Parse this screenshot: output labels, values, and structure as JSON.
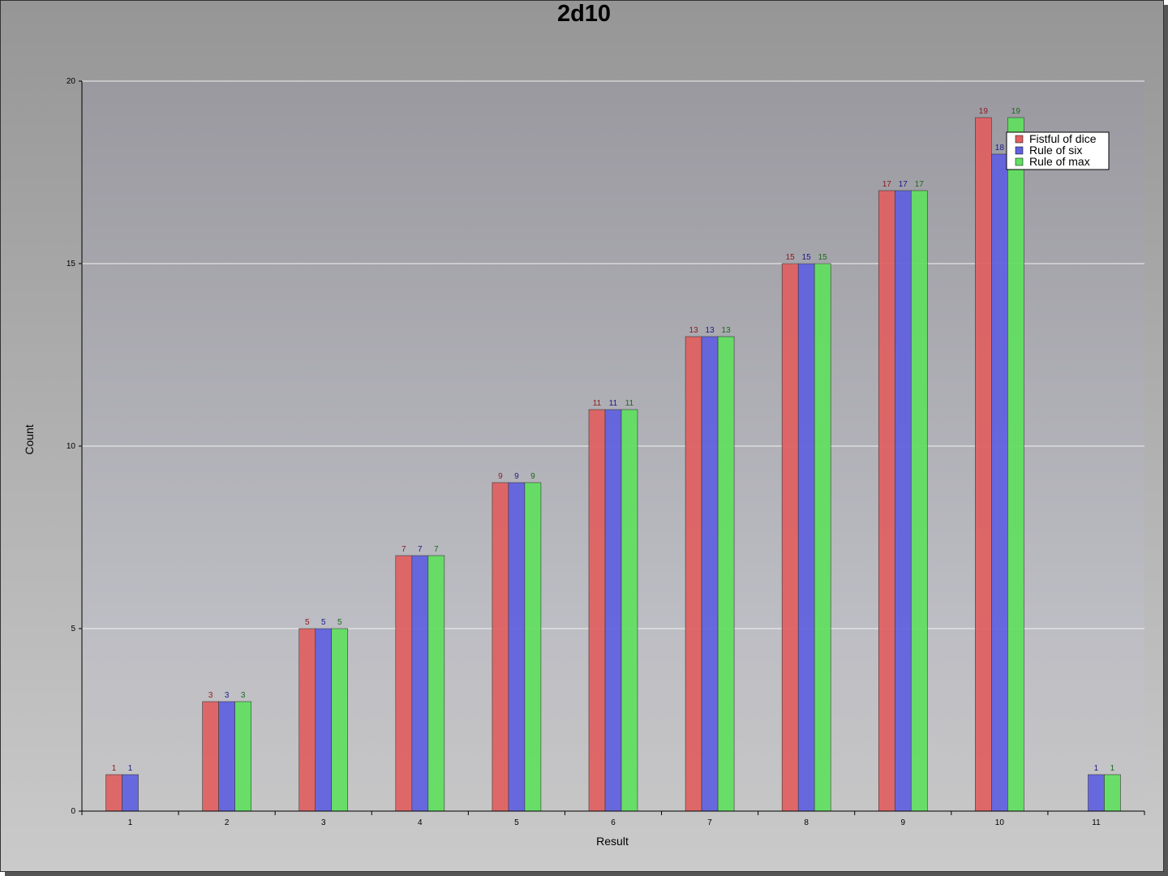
{
  "chart_data": {
    "type": "bar",
    "title": "2d10",
    "xlabel": "Result",
    "ylabel": "Count",
    "categories": [
      "1",
      "2",
      "3",
      "4",
      "5",
      "6",
      "7",
      "8",
      "9",
      "10",
      "11"
    ],
    "ylim": [
      0,
      20
    ],
    "yticks": [
      0,
      5,
      10,
      15,
      20
    ],
    "grid": true,
    "legend_position": "top-right",
    "series": [
      {
        "name": "Fistful of dice",
        "color": "#e06060",
        "label_color": "#8b1a1a",
        "values": [
          1,
          3,
          5,
          7,
          9,
          11,
          13,
          15,
          17,
          19,
          null
        ]
      },
      {
        "name": "Rule of six",
        "color": "#6060e0",
        "label_color": "#1a1a8b",
        "values": [
          1,
          3,
          5,
          7,
          9,
          11,
          13,
          15,
          17,
          18,
          1
        ]
      },
      {
        "name": "Rule of max",
        "color": "#60e060",
        "label_color": "#1a6b1a",
        "values": [
          null,
          3,
          5,
          7,
          9,
          11,
          13,
          15,
          17,
          19,
          1
        ]
      }
    ]
  }
}
